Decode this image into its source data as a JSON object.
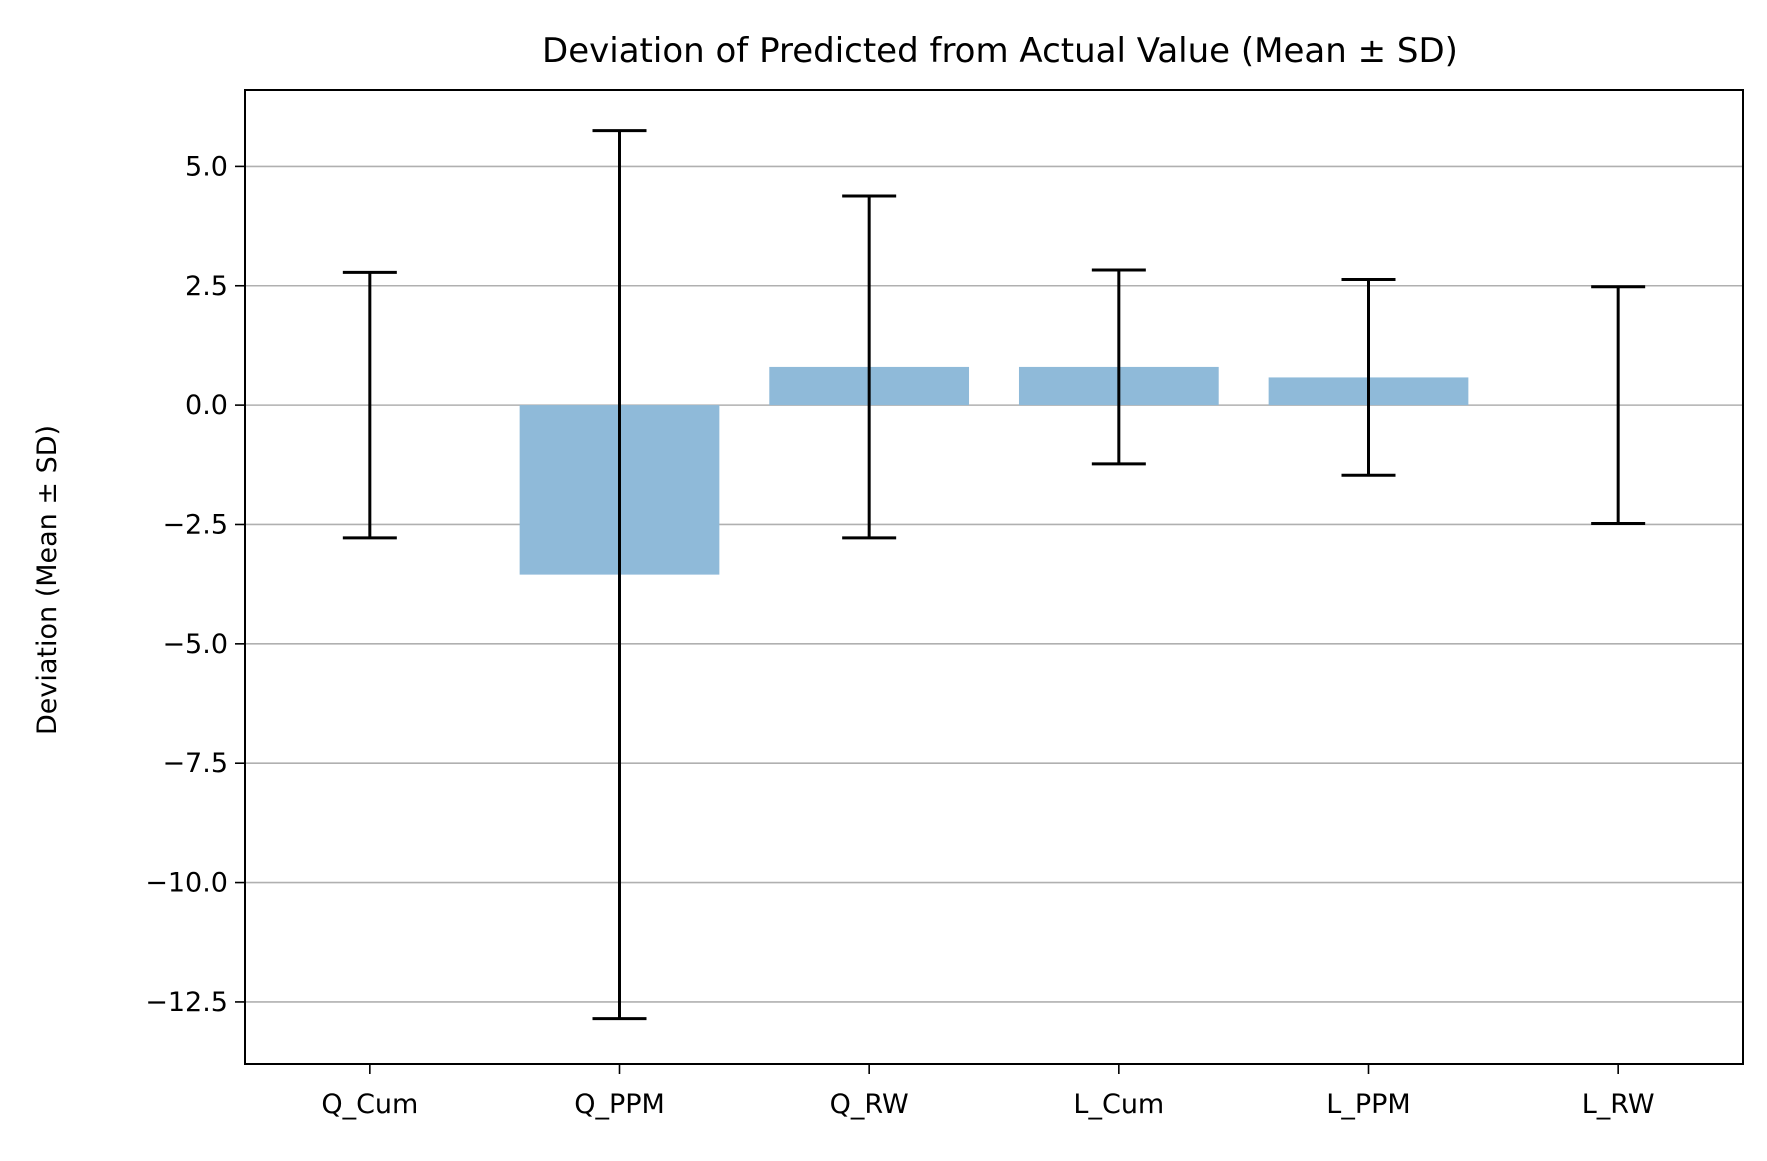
{
  "chart_data": {
    "type": "bar",
    "title": "Deviation of Predicted from Actual Value (Mean ± SD)",
    "xlabel": "",
    "ylabel": "Deviation (Mean ± SD)",
    "categories": [
      "Q_Cum",
      "Q_PPM",
      "Q_RW",
      "L_Cum",
      "L_PPM",
      "L_RW"
    ],
    "values": [
      0.0,
      -3.55,
      0.8,
      0.8,
      0.58,
      0.0
    ],
    "errors": [
      2.78,
      9.3,
      3.58,
      2.03,
      2.05,
      2.48
    ],
    "ylim": [
      -13.8,
      6.6
    ],
    "yticks": [
      5.0,
      2.5,
      0.0,
      -2.5,
      -5.0,
      -7.5,
      -10.0,
      -12.5
    ],
    "ytick_labels": [
      "5.0",
      "2.5",
      "0.0",
      "−2.5",
      "−5.0",
      "−7.5",
      "−10.0",
      "−12.5"
    ],
    "grid": "horizontal",
    "colors": {
      "bar": "#8fbad9",
      "error": "#000000",
      "grid": "#b0b0b0"
    }
  }
}
